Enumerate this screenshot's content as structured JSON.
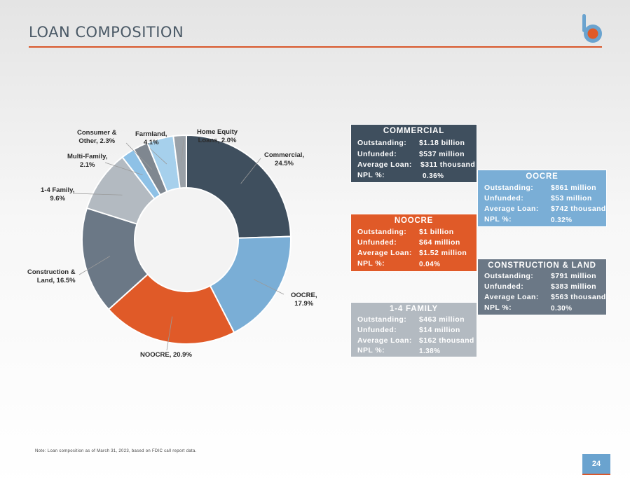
{
  "page": {
    "title": "LOAN COMPOSITION",
    "note": "Note: Loan composition as of March 31, 2023, based on FDIC call report data.",
    "page_number": "24"
  },
  "colors": {
    "accent": "#d9572b",
    "commercial": "#3f4f5e",
    "oocre": "#7aaed6",
    "noocre": "#e05a28",
    "construction": "#6b7886",
    "family": "#b3bac1",
    "multifamily": "#8ec1e6",
    "consumer": "#7f8790",
    "farmland": "#a6d0ec",
    "home_equity": "#9aa1a8"
  },
  "chart_data": {
    "type": "pie",
    "donut": true,
    "categories": [
      "Commercial",
      "OOCRE",
      "NOOCRE",
      "Construction & Land",
      "1-4 Family",
      "Multi-Family",
      "Consumer & Other",
      "Farmland",
      "Home Equity Loans"
    ],
    "values": [
      24.5,
      17.9,
      20.9,
      16.5,
      9.6,
      2.1,
      2.3,
      4.1,
      2.0
    ],
    "labels": [
      "Commercial,\n24.5%",
      "OOCRE,\n17.9%",
      "NOOCRE, 20.9%",
      "Construction &\nLand, 16.5%",
      "1-4 Family,\n9.6%",
      "Multi-Family,\n2.1%",
      "Consumer &\nOther, 2.3%",
      "Farmland,\n4.1%",
      "Home Equity\nLoans, 2.0%"
    ]
  },
  "cards": {
    "commercial": {
      "title": "COMMERCIAL",
      "outstanding_label": "Outstanding:",
      "outstanding": "$1.18 billion",
      "unfunded_label": "Unfunded:",
      "unfunded": "$537 million",
      "avg_label": "Average Loan:",
      "avg": "$311 thousand",
      "npl_label": "NPL %:",
      "npl": "0.36%"
    },
    "oocre": {
      "title": "OOCRE",
      "outstanding_label": "Outstanding:",
      "outstanding": "$861 million",
      "unfunded_label": "Unfunded:",
      "unfunded": "$53 million",
      "avg_label": "Average Loan:",
      "avg": "$742 thousand",
      "npl_label": "NPL %:",
      "npl": "0.32%"
    },
    "noocre": {
      "title": "NOOCRE",
      "outstanding_label": "Outstanding:",
      "outstanding": "$1 billion",
      "unfunded_label": "Unfunded:",
      "unfunded": "$64 million",
      "avg_label": "Average Loan:",
      "avg": "$1.52 million",
      "npl_label": "NPL %:",
      "npl": "0.04%"
    },
    "construction": {
      "title": "CONSTRUCTION & LAND",
      "outstanding_label": "Outstanding:",
      "outstanding": "$791 million",
      "unfunded_label": "Unfunded:",
      "unfunded": "$383 million",
      "avg_label": "Average Loan:",
      "avg": "$563 thousand",
      "npl_label": "NPL %:",
      "npl": "0.30%"
    },
    "family": {
      "title": "1-4 FAMILY",
      "outstanding_label": "Outstanding:",
      "outstanding": "$463 million",
      "unfunded_label": "Unfunded:",
      "unfunded": "$14 million",
      "avg_label": "Average Loan:",
      "avg": "$162 thousand",
      "npl_label": "NPL %:",
      "npl": "1.38%"
    }
  },
  "logo": {
    "icon": "bank-logo-icon",
    "letter": "b"
  }
}
